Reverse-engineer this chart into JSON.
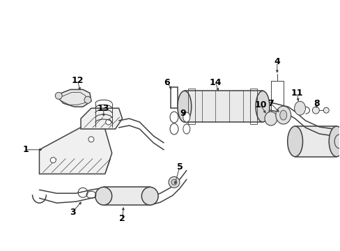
{
  "bg_color": "#ffffff",
  "line_color": "#404040",
  "label_color": "#000000",
  "fig_width": 4.89,
  "fig_height": 3.6,
  "dpi": 100,
  "label_fontsize": 9,
  "lw_main": 1.1,
  "lw_thin": 0.7
}
